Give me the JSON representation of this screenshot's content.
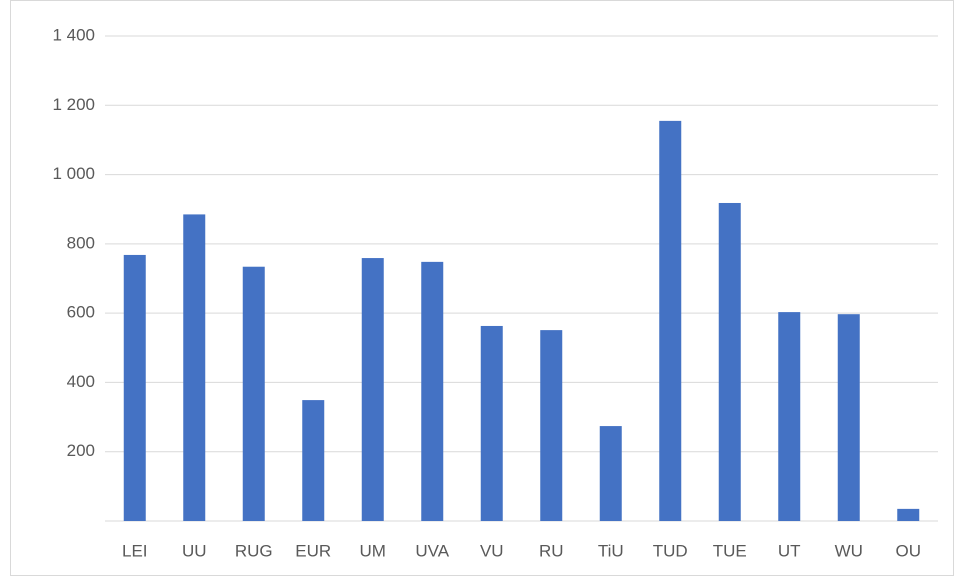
{
  "chart_data": {
    "type": "bar",
    "categories": [
      "LEI",
      "UU",
      "RUG",
      "EUR",
      "UM",
      "UVA",
      "VU",
      "RU",
      "TiU",
      "TUD",
      "TUE",
      "UT",
      "WU",
      "OU"
    ],
    "values": [
      768,
      885,
      734,
      349,
      759,
      748,
      563,
      551,
      274,
      1155,
      918,
      603,
      597,
      35
    ],
    "color": "#4472c4",
    "ylim": [
      0,
      1400
    ],
    "yticks": [
      200,
      400,
      600,
      800,
      {
        "value": 1000,
        "label": "1 000"
      },
      {
        "value": 1200,
        "label": "1 200"
      },
      {
        "value": 1400,
        "label": "1 400"
      }
    ],
    "grid": true
  }
}
